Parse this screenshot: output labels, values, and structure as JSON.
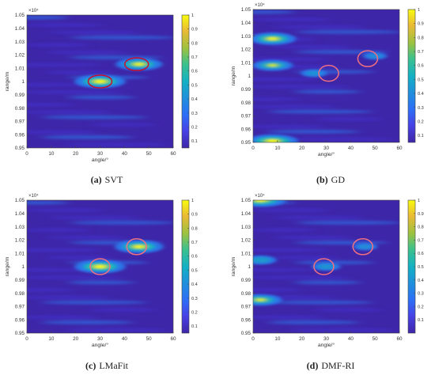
{
  "chart_data": [
    {
      "type": "heatmap",
      "panel_label": "(a)",
      "panel_name": "SVT",
      "xlabel": "angle/°",
      "ylabel": "range/m",
      "exponent": "×10⁴",
      "xlim": [
        0,
        60
      ],
      "ylim": [
        0.95,
        1.05
      ],
      "xticks": [
        "0",
        "10",
        "20",
        "30",
        "40",
        "50",
        "60"
      ],
      "yticks": [
        "0.95",
        "0.96",
        "0.97",
        "0.98",
        "0.99",
        "1",
        "1.01",
        "1.02",
        "1.03",
        "1.04",
        "1.05"
      ],
      "colorbar_ticks": [
        "0.1",
        "0.2",
        "0.3",
        "0.4",
        "0.5",
        "0.6",
        "0.7",
        "0.8",
        "0.9",
        "1"
      ],
      "colorbar_range": [
        0.05,
        1
      ],
      "circle_color": "#c8102e",
      "peaks": [
        {
          "angle": 30,
          "range": 1.0,
          "intensity": 1.0
        },
        {
          "angle": 46,
          "range": 1.013,
          "intensity": 0.9
        }
      ],
      "circles": [
        {
          "angle": 30,
          "range": 1.0
        },
        {
          "angle": 45,
          "range": 1.013
        }
      ]
    },
    {
      "type": "heatmap",
      "panel_label": "(b)",
      "panel_name": "GD",
      "xlabel": "angle/°",
      "ylabel": "range/m",
      "exponent": "×10⁴",
      "xlim": [
        0,
        60
      ],
      "ylim": [
        0.95,
        1.05
      ],
      "xticks": [
        "0",
        "10",
        "20",
        "30",
        "40",
        "50",
        "60"
      ],
      "yticks": [
        "0.95",
        "0.96",
        "0.97",
        "0.98",
        "0.99",
        "1",
        "1.01",
        "1.02",
        "1.03",
        "1.04",
        "1.05"
      ],
      "colorbar_ticks": [
        "0.1",
        "0.2",
        "0.3",
        "0.4",
        "0.5",
        "0.6",
        "0.7",
        "0.8",
        "0.9",
        "1"
      ],
      "colorbar_range": [
        0.05,
        1
      ],
      "circle_color": "#f07080",
      "peaks": [
        {
          "angle": 8,
          "range": 1.028,
          "intensity": 0.9
        },
        {
          "angle": 8,
          "range": 1.008,
          "intensity": 0.75
        },
        {
          "angle": 8,
          "range": 0.951,
          "intensity": 1.0
        },
        {
          "angle": 25,
          "range": 1.002,
          "intensity": 0.4
        },
        {
          "angle": 50,
          "range": 1.015,
          "intensity": 0.35
        }
      ],
      "circles": [
        {
          "angle": 31,
          "range": 1.002
        },
        {
          "angle": 47,
          "range": 1.013
        }
      ]
    },
    {
      "type": "heatmap",
      "panel_label": "(c)",
      "panel_name": "LMaFit",
      "xlabel": "angle/°",
      "ylabel": "range/m",
      "exponent": "×10⁴",
      "xlim": [
        0,
        60
      ],
      "ylim": [
        0.95,
        1.05
      ],
      "xticks": [
        "0",
        "10",
        "20",
        "30",
        "40",
        "50",
        "60"
      ],
      "yticks": [
        "0.95",
        "0.96",
        "0.97",
        "0.98",
        "0.99",
        "1",
        "1.01",
        "1.02",
        "1.03",
        "1.04",
        "1.05"
      ],
      "colorbar_ticks": [
        "0.1",
        "0.2",
        "0.3",
        "0.4",
        "0.5",
        "0.6",
        "0.7",
        "0.8",
        "0.9",
        "1"
      ],
      "colorbar_range": [
        0.05,
        1
      ],
      "circle_color": "#f07080",
      "peaks": [
        {
          "angle": 30,
          "range": 1.0,
          "intensity": 1.0
        },
        {
          "angle": 46,
          "range": 1.015,
          "intensity": 0.95
        }
      ],
      "circles": [
        {
          "angle": 30,
          "range": 1.0
        },
        {
          "angle": 45,
          "range": 1.015
        }
      ]
    },
    {
      "type": "heatmap",
      "panel_label": "(d)",
      "panel_name": "DMF-RI",
      "xlabel": "angle/°",
      "ylabel": "range/m",
      "exponent": "×10⁴",
      "xlim": [
        0,
        60
      ],
      "ylim": [
        0.95,
        1.05
      ],
      "xticks": [
        "0",
        "10",
        "20",
        "30",
        "40",
        "50",
        "60"
      ],
      "yticks": [
        "0.95",
        "0.96",
        "0.97",
        "0.98",
        "0.99",
        "1",
        "1.01",
        "1.02",
        "1.03",
        "1.04",
        "1.05"
      ],
      "colorbar_ticks": [
        "0.1",
        "0.2",
        "0.3",
        "0.4",
        "0.5",
        "0.6",
        "0.7",
        "0.8",
        "0.9",
        "1"
      ],
      "colorbar_range": [
        0,
        1
      ],
      "circle_color": "#f07080",
      "peaks": [
        {
          "angle": 3,
          "range": 1.05,
          "intensity": 1.0
        },
        {
          "angle": 3,
          "range": 0.975,
          "intensity": 0.8
        },
        {
          "angle": 3,
          "range": 1.005,
          "intensity": 0.55
        },
        {
          "angle": 30,
          "range": 1.0,
          "intensity": 0.45
        },
        {
          "angle": 46,
          "range": 1.015,
          "intensity": 0.35
        }
      ],
      "circles": [
        {
          "angle": 29,
          "range": 1.0
        },
        {
          "angle": 45,
          "range": 1.015
        }
      ]
    }
  ]
}
